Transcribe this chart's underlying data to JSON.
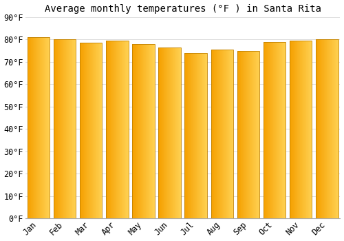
{
  "months": [
    "Jan",
    "Feb",
    "Mar",
    "Apr",
    "May",
    "Jun",
    "Jul",
    "Aug",
    "Sep",
    "Oct",
    "Nov",
    "Dec"
  ],
  "values": [
    81,
    80,
    78.5,
    79.5,
    78,
    76.5,
    74,
    75.5,
    75,
    79,
    79.5,
    80
  ],
  "title": "Average monthly temperatures (°F ) in Santa Rita",
  "ylim": [
    0,
    90
  ],
  "yticks": [
    0,
    10,
    20,
    30,
    40,
    50,
    60,
    70,
    80,
    90
  ],
  "ytick_labels": [
    "0°F",
    "10°F",
    "20°F",
    "30°F",
    "40°F",
    "50°F",
    "60°F",
    "70°F",
    "80°F",
    "90°F"
  ],
  "bar_color_left": "#F5A000",
  "bar_color_right": "#FFD050",
  "bar_edge_color": "#C08000",
  "background_color": "#FFFFFF",
  "grid_color": "#DDDDDD",
  "title_fontsize": 10,
  "tick_fontsize": 8.5,
  "font_family": "monospace"
}
